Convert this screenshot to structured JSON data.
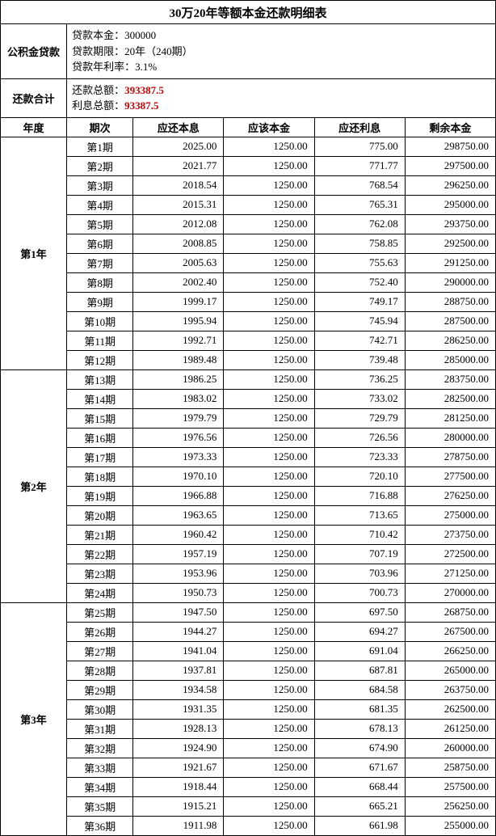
{
  "title": "30万20年等额本金还款明细表",
  "loan_label": "公积金贷款",
  "loan_info": {
    "principal_label": "贷款本金：",
    "principal": "300000",
    "term_label": "贷款期限：",
    "term": "20年（240期）",
    "rate_label": "贷款年利率：",
    "rate": "3.1%"
  },
  "total_label": "还款合计",
  "totals": {
    "repay_label": "还款总额：",
    "repay_value": "393387.5",
    "interest_label": "利息总额：",
    "interest_value": "93387.5"
  },
  "columns": {
    "year": "年度",
    "period": "期次",
    "pi": "应还本息",
    "principal": "应该本金",
    "interest": "应还利息",
    "balance": "剩余本金"
  },
  "years": [
    {
      "label": "第1年",
      "rows": [
        {
          "period": "第1期",
          "pi": "2025.00",
          "principal": "1250.00",
          "interest": "775.00",
          "balance": "298750.00"
        },
        {
          "period": "第2期",
          "pi": "2021.77",
          "principal": "1250.00",
          "interest": "771.77",
          "balance": "297500.00"
        },
        {
          "period": "第3期",
          "pi": "2018.54",
          "principal": "1250.00",
          "interest": "768.54",
          "balance": "296250.00"
        },
        {
          "period": "第4期",
          "pi": "2015.31",
          "principal": "1250.00",
          "interest": "765.31",
          "balance": "295000.00"
        },
        {
          "period": "第5期",
          "pi": "2012.08",
          "principal": "1250.00",
          "interest": "762.08",
          "balance": "293750.00"
        },
        {
          "period": "第6期",
          "pi": "2008.85",
          "principal": "1250.00",
          "interest": "758.85",
          "balance": "292500.00"
        },
        {
          "period": "第7期",
          "pi": "2005.63",
          "principal": "1250.00",
          "interest": "755.63",
          "balance": "291250.00"
        },
        {
          "period": "第8期",
          "pi": "2002.40",
          "principal": "1250.00",
          "interest": "752.40",
          "balance": "290000.00"
        },
        {
          "period": "第9期",
          "pi": "1999.17",
          "principal": "1250.00",
          "interest": "749.17",
          "balance": "288750.00"
        },
        {
          "period": "第10期",
          "pi": "1995.94",
          "principal": "1250.00",
          "interest": "745.94",
          "balance": "287500.00"
        },
        {
          "period": "第11期",
          "pi": "1992.71",
          "principal": "1250.00",
          "interest": "742.71",
          "balance": "286250.00"
        },
        {
          "period": "第12期",
          "pi": "1989.48",
          "principal": "1250.00",
          "interest": "739.48",
          "balance": "285000.00"
        }
      ]
    },
    {
      "label": "第2年",
      "rows": [
        {
          "period": "第13期",
          "pi": "1986.25",
          "principal": "1250.00",
          "interest": "736.25",
          "balance": "283750.00"
        },
        {
          "period": "第14期",
          "pi": "1983.02",
          "principal": "1250.00",
          "interest": "733.02",
          "balance": "282500.00"
        },
        {
          "period": "第15期",
          "pi": "1979.79",
          "principal": "1250.00",
          "interest": "729.79",
          "balance": "281250.00"
        },
        {
          "period": "第16期",
          "pi": "1976.56",
          "principal": "1250.00",
          "interest": "726.56",
          "balance": "280000.00"
        },
        {
          "period": "第17期",
          "pi": "1973.33",
          "principal": "1250.00",
          "interest": "723.33",
          "balance": "278750.00"
        },
        {
          "period": "第18期",
          "pi": "1970.10",
          "principal": "1250.00",
          "interest": "720.10",
          "balance": "277500.00"
        },
        {
          "period": "第19期",
          "pi": "1966.88",
          "principal": "1250.00",
          "interest": "716.88",
          "balance": "276250.00"
        },
        {
          "period": "第20期",
          "pi": "1963.65",
          "principal": "1250.00",
          "interest": "713.65",
          "balance": "275000.00"
        },
        {
          "period": "第21期",
          "pi": "1960.42",
          "principal": "1250.00",
          "interest": "710.42",
          "balance": "273750.00"
        },
        {
          "period": "第22期",
          "pi": "1957.19",
          "principal": "1250.00",
          "interest": "707.19",
          "balance": "272500.00"
        },
        {
          "period": "第23期",
          "pi": "1953.96",
          "principal": "1250.00",
          "interest": "703.96",
          "balance": "271250.00"
        },
        {
          "period": "第24期",
          "pi": "1950.73",
          "principal": "1250.00",
          "interest": "700.73",
          "balance": "270000.00"
        }
      ]
    },
    {
      "label": "第3年",
      "rows": [
        {
          "period": "第25期",
          "pi": "1947.50",
          "principal": "1250.00",
          "interest": "697.50",
          "balance": "268750.00"
        },
        {
          "period": "第26期",
          "pi": "1944.27",
          "principal": "1250.00",
          "interest": "694.27",
          "balance": "267500.00"
        },
        {
          "period": "第27期",
          "pi": "1941.04",
          "principal": "1250.00",
          "interest": "691.04",
          "balance": "266250.00"
        },
        {
          "period": "第28期",
          "pi": "1937.81",
          "principal": "1250.00",
          "interest": "687.81",
          "balance": "265000.00"
        },
        {
          "period": "第29期",
          "pi": "1934.58",
          "principal": "1250.00",
          "interest": "684.58",
          "balance": "263750.00"
        },
        {
          "period": "第30期",
          "pi": "1931.35",
          "principal": "1250.00",
          "interest": "681.35",
          "balance": "262500.00"
        },
        {
          "period": "第31期",
          "pi": "1928.13",
          "principal": "1250.00",
          "interest": "678.13",
          "balance": "261250.00"
        },
        {
          "period": "第32期",
          "pi": "1924.90",
          "principal": "1250.00",
          "interest": "674.90",
          "balance": "260000.00"
        },
        {
          "period": "第33期",
          "pi": "1921.67",
          "principal": "1250.00",
          "interest": "671.67",
          "balance": "258750.00"
        },
        {
          "period": "第34期",
          "pi": "1918.44",
          "principal": "1250.00",
          "interest": "668.44",
          "balance": "257500.00"
        },
        {
          "period": "第35期",
          "pi": "1915.21",
          "principal": "1250.00",
          "interest": "665.21",
          "balance": "256250.00"
        },
        {
          "period": "第36期",
          "pi": "1911.98",
          "principal": "1250.00",
          "interest": "661.98",
          "balance": "255000.00"
        }
      ]
    }
  ]
}
